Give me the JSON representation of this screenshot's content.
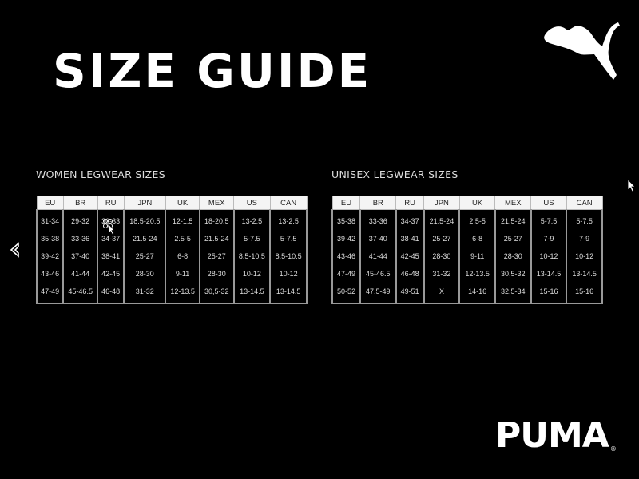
{
  "title": "SIZE GUIDE",
  "brand": {
    "wordmark": "PUMA",
    "registered": "®"
  },
  "columns": [
    "EU",
    "BR",
    "RU",
    "JPN",
    "UK",
    "MEX",
    "US",
    "CAN"
  ],
  "women": {
    "title": "WOMEN LEGWEAR SIZES",
    "rows": [
      [
        "31-34",
        "29-32",
        "30-33",
        "18.5-20.5",
        "12-1.5",
        "18-20.5",
        "13-2.5",
        "13-2.5"
      ],
      [
        "35-38",
        "33-36",
        "34-37",
        "21.5-24",
        "2.5-5",
        "21.5-24",
        "5-7.5",
        "5-7.5"
      ],
      [
        "39-42",
        "37-40",
        "38-41",
        "25-27",
        "6-8",
        "25-27",
        "8.5-10.5",
        "8.5-10.5"
      ],
      [
        "43-46",
        "41-44",
        "42-45",
        "28-30",
        "9-11",
        "28-30",
        "10-12",
        "10-12"
      ],
      [
        "47-49",
        "45-46.5",
        "46-48",
        "31-32",
        "12-13.5",
        "30,5-32",
        "13-14.5",
        "13-14.5"
      ]
    ]
  },
  "unisex": {
    "title": "UNISEX LEGWEAR SIZES",
    "rows": [
      [
        "35-38",
        "33-36",
        "34-37",
        "21.5-24",
        "2.5-5",
        "21.5-24",
        "5-7.5",
        "5-7.5"
      ],
      [
        "39-42",
        "37-40",
        "38-41",
        "25-27",
        "6-8",
        "25-27",
        "7-9",
        "7-9"
      ],
      [
        "43-46",
        "41-44",
        "42-45",
        "28-30",
        "9-11",
        "28-30",
        "10-12",
        "10-12"
      ],
      [
        "47-49",
        "45-46.5",
        "46-48",
        "31-32",
        "12-13.5",
        "30,5-32",
        "13-14.5",
        "13-14.5"
      ],
      [
        "50-52",
        "47.5-49",
        "49-51",
        "X",
        "14-16",
        "32,5-34",
        "15-16",
        "15-16"
      ]
    ]
  },
  "icons": {
    "back": "back-arrow-icon",
    "logo": "puma-cat-logo",
    "cursor": "mouse-pointer-icon"
  }
}
